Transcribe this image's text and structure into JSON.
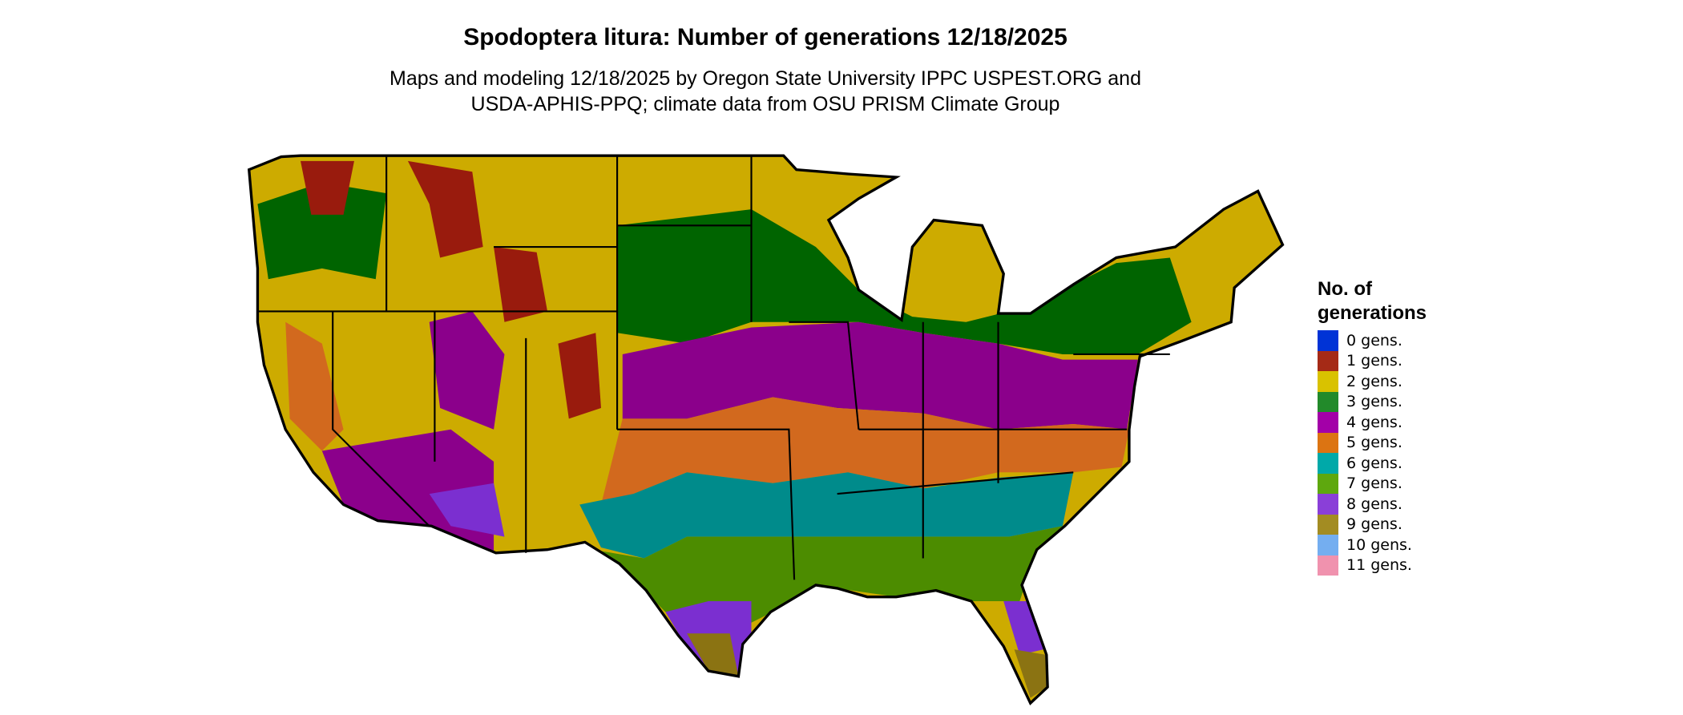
{
  "title": "Spodoptera litura: Number of generations 12/18/2025",
  "subtitle_line1": "Maps and modeling 12/18/2025 by Oregon State University IPPC USPEST.ORG and",
  "subtitle_line2": "USDA-APHIS-PPQ; climate data from OSU PRISM Climate Group",
  "legend": {
    "title_line1": "No. of",
    "title_line2": "generations",
    "items": [
      {
        "label": "0 gens.",
        "color": "#0033d6"
      },
      {
        "label": "1 gens.",
        "color": "#a52a16"
      },
      {
        "label": "2 gens.",
        "color": "#d9c200"
      },
      {
        "label": "3 gens.",
        "color": "#228a2a"
      },
      {
        "label": "4 gens.",
        "color": "#a300a8"
      },
      {
        "label": "5 gens.",
        "color": "#dc7412"
      },
      {
        "label": "6 gens.",
        "color": "#00a9a9"
      },
      {
        "label": "7 gens.",
        "color": "#5ea80e"
      },
      {
        "label": "8 gens.",
        "color": "#8a3fd8"
      },
      {
        "label": "9 gens.",
        "color": "#a38c22"
      },
      {
        "label": "10 gens.",
        "color": "#74aef0"
      },
      {
        "label": "11 gens.",
        "color": "#f092ae"
      }
    ]
  },
  "map_colors": {
    "g1": "#991b0d",
    "g2": "#cdab00",
    "g3": "#006400",
    "g4": "#8b008b",
    "g5": "#d2691e",
    "g6": "#008b8b",
    "g7": "#4c8c00",
    "g8": "#7b2fd0",
    "g9": "#8b7312",
    "g10": "#5a9ef0"
  }
}
